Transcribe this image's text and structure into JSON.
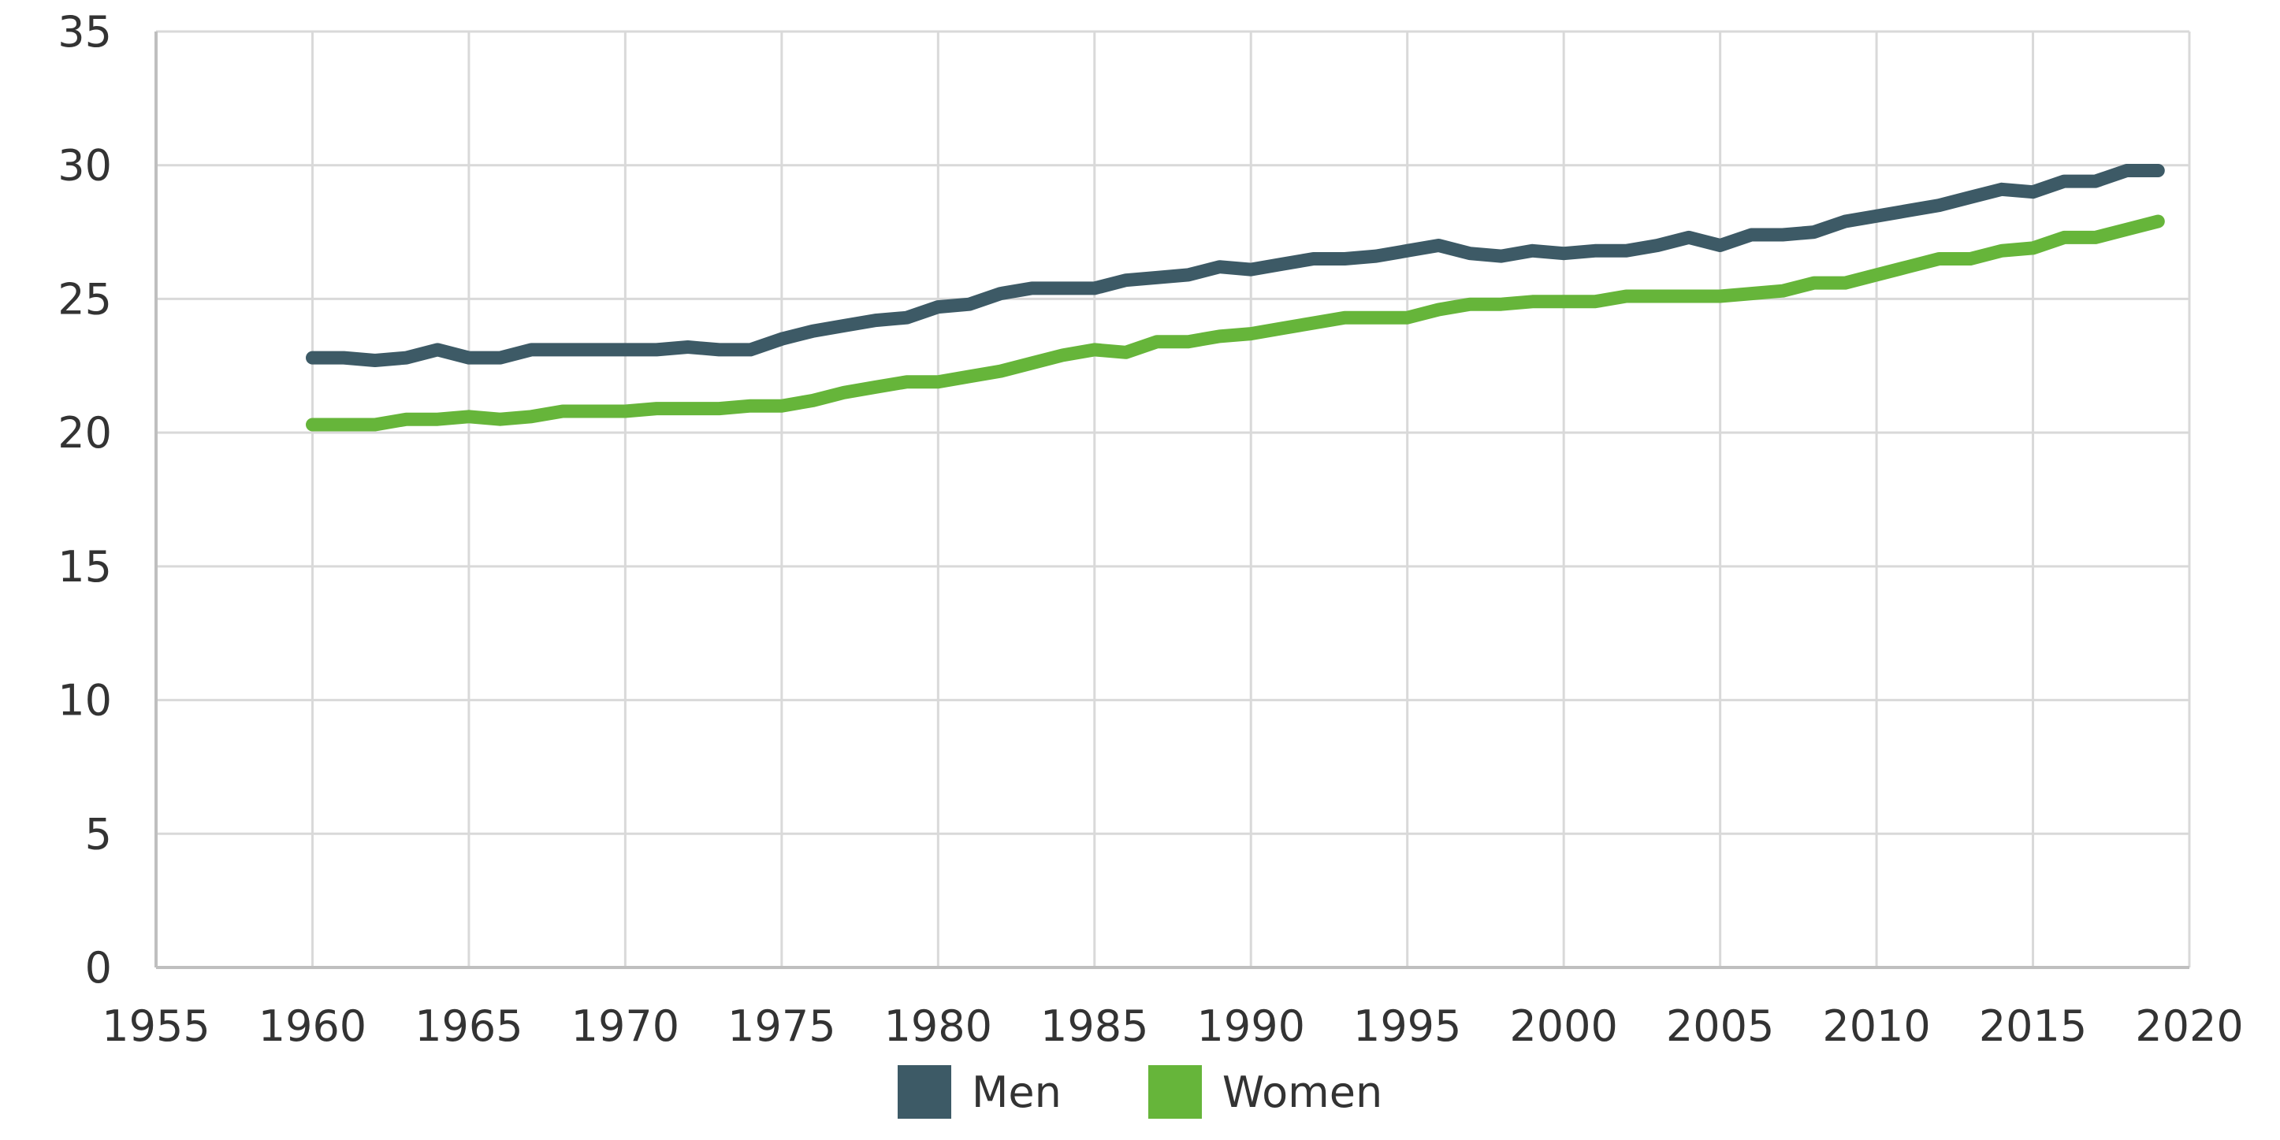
{
  "chart_data": {
    "type": "line",
    "title": "",
    "xlabel": "",
    "ylabel": "",
    "xlim": [
      1955,
      2020
    ],
    "ylim": [
      0,
      35
    ],
    "xticks": [
      "1955",
      "1960",
      "1965",
      "1970",
      "1975",
      "1980",
      "1985",
      "1990",
      "1995",
      "2000",
      "2005",
      "2010",
      "2015",
      "2020"
    ],
    "yticks": [
      "0",
      "5",
      "10",
      "15",
      "20",
      "25",
      "30",
      "35"
    ],
    "grid": true,
    "legend_position": "bottom-center",
    "x": [
      1960,
      1961,
      1962,
      1963,
      1964,
      1965,
      1966,
      1967,
      1968,
      1969,
      1970,
      1971,
      1972,
      1973,
      1974,
      1975,
      1976,
      1977,
      1978,
      1979,
      1980,
      1981,
      1982,
      1983,
      1984,
      1985,
      1986,
      1987,
      1988,
      1989,
      1990,
      1991,
      1992,
      1993,
      1994,
      1995,
      1996,
      1997,
      1998,
      1999,
      2000,
      2001,
      2002,
      2003,
      2004,
      2005,
      2006,
      2007,
      2008,
      2009,
      2010,
      2011,
      2012,
      2013,
      2014,
      2015,
      2016,
      2017,
      2018,
      2019
    ],
    "series": [
      {
        "name": "Men",
        "color": "#3d5a66",
        "values": [
          22.8,
          22.8,
          22.7,
          22.8,
          23.1,
          22.8,
          22.8,
          23.1,
          23.1,
          23.1,
          23.1,
          23.1,
          23.2,
          23.1,
          23.1,
          23.5,
          23.8,
          24.0,
          24.2,
          24.3,
          24.7,
          24.8,
          25.2,
          25.4,
          25.4,
          25.4,
          25.7,
          25.8,
          25.9,
          26.2,
          26.1,
          26.3,
          26.5,
          26.5,
          26.6,
          26.8,
          27.0,
          26.7,
          26.6,
          26.8,
          26.7,
          26.8,
          26.8,
          27.0,
          27.3,
          27.0,
          27.4,
          27.4,
          27.5,
          27.9,
          28.1,
          28.3,
          28.5,
          28.8,
          29.1,
          29.0,
          29.4,
          29.4,
          29.8,
          29.8
        ]
      },
      {
        "name": "Women",
        "color": "#66b53a",
        "values": [
          20.3,
          20.3,
          20.3,
          20.5,
          20.5,
          20.6,
          20.5,
          20.6,
          20.8,
          20.8,
          20.8,
          20.9,
          20.9,
          20.9,
          21.0,
          21.0,
          21.2,
          21.5,
          21.7,
          21.9,
          21.9,
          22.1,
          22.3,
          22.6,
          22.9,
          23.1,
          23.0,
          23.4,
          23.4,
          23.6,
          23.7,
          23.9,
          24.1,
          24.3,
          24.3,
          24.3,
          24.6,
          24.8,
          24.8,
          24.9,
          24.9,
          24.9,
          25.1,
          25.1,
          25.1,
          25.1,
          25.2,
          25.3,
          25.6,
          25.6,
          25.9,
          26.2,
          26.5,
          26.5,
          26.8,
          26.9,
          27.3,
          27.3,
          27.6,
          27.9
        ]
      }
    ]
  },
  "legend": {
    "items": [
      {
        "label": "Men",
        "color": "#3d5a66"
      },
      {
        "label": "Women",
        "color": "#66b53a"
      }
    ]
  }
}
